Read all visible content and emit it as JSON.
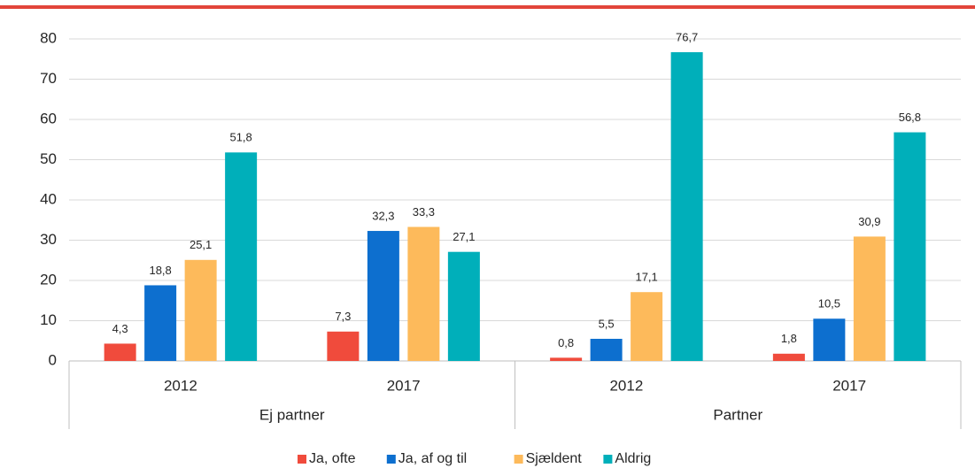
{
  "chart_data": {
    "type": "bar",
    "categories": [
      "2012",
      "2017",
      "2012",
      "2017"
    ],
    "groups": [
      "Ej partner",
      "Partner"
    ],
    "series": [
      {
        "name": "Ja, ofte",
        "color": "#f04b3c",
        "values": [
          4.3,
          7.3,
          0.8,
          1.8
        ],
        "value_labels": [
          "4,3",
          "7,3",
          "0,8",
          "1,8"
        ]
      },
      {
        "name": "Ja, af og til",
        "color": "#0d6fcf",
        "values": [
          18.8,
          32.3,
          5.5,
          10.5
        ],
        "value_labels": [
          "18,8",
          "32,3",
          "5,5",
          "10,5"
        ]
      },
      {
        "name": "Sjældent",
        "color": "#fdba5b",
        "values": [
          25.1,
          33.3,
          17.1,
          30.9
        ],
        "value_labels": [
          "25,1",
          "33,3",
          "17,1",
          "30,9"
        ]
      },
      {
        "name": "Aldrig",
        "color": "#00afba",
        "values": [
          51.8,
          27.1,
          76.7,
          56.8
        ],
        "value_labels": [
          "51,8",
          "27,1",
          "76,7",
          "56,8"
        ]
      }
    ],
    "ylim": [
      0,
      80
    ],
    "yticks": [
      0,
      10,
      20,
      30,
      40,
      50,
      60,
      70,
      80
    ],
    "grid": true,
    "legend": "bottom"
  }
}
